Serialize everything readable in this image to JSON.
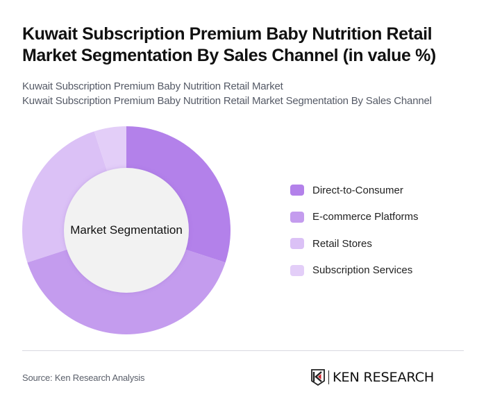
{
  "header": {
    "title": "Kuwait Subscription Premium Baby Nutrition Retail Market Segmentation By Sales Channel (in value %)",
    "subtitle_lines": [
      "Kuwait Subscription Premium Baby Nutrition Retail Market",
      "Kuwait Subscription Premium Baby Nutrition Retail Market Segmentation By Sales Channel"
    ]
  },
  "chart": {
    "center_label": "Market Segmentation"
  },
  "legend": {
    "items": [
      {
        "label": "Direct-to-Consumer",
        "color": "#b381ea"
      },
      {
        "label": "E-commerce Platforms",
        "color": "#c49cee"
      },
      {
        "label": "Retail Stores",
        "color": "#dbc1f6"
      },
      {
        "label": "Subscription Services",
        "color": "#e3cef8"
      }
    ]
  },
  "footer": {
    "source": "Source: Ken Research Analysis",
    "logo_text": "KEN RESEARCH"
  },
  "chart_data": {
    "type": "pie",
    "variant": "donut",
    "title": "Kuwait Subscription Premium Baby Nutrition Retail Market Segmentation By Sales Channel (in value %)",
    "center_label": "Market Segmentation",
    "categories": [
      "Direct-to-Consumer",
      "E-commerce Platforms",
      "Retail Stores",
      "Subscription Services"
    ],
    "values": [
      30,
      40,
      25,
      5
    ],
    "colors": [
      "#b381ea",
      "#c49cee",
      "#dbc1f6",
      "#e3cef8"
    ],
    "unit": "%",
    "start_angle": "top, clockwise",
    "legend_position": "right"
  }
}
